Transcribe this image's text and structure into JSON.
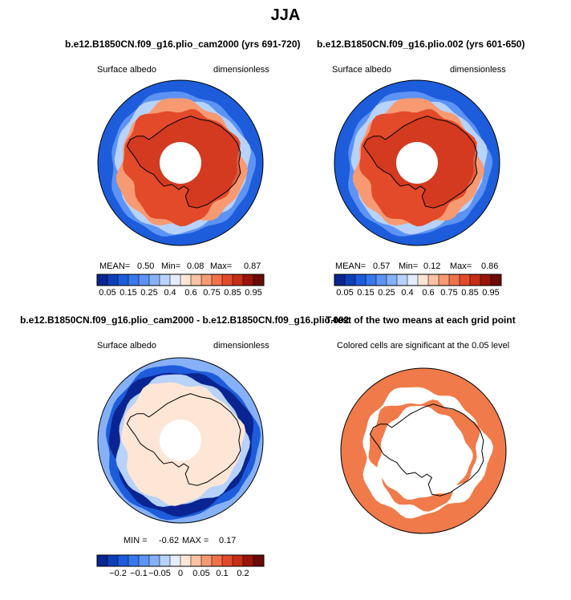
{
  "page_title": "JJA",
  "panels": [
    {
      "title": "b.e12.B1850CN.f09_g16.plio_cam2000 (yrs 691-720)",
      "left_label": "Surface albedo",
      "right_label": "dimensionless",
      "stats": {
        "mean_label": "MEAN=",
        "mean": "0.50",
        "min_label": "Min=",
        "min": "0.08",
        "max_label": "Max=",
        "max": "0.87"
      }
    },
    {
      "title": "b.e12.B1850CN.f09_g16.plio.002 (yrs 601-650)",
      "left_label": "Surface albedo",
      "right_label": "dimensionless",
      "stats": {
        "mean_label": "MEAN=",
        "mean": "0.57",
        "min_label": "Min=",
        "min": "0.12",
        "max_label": "Max=",
        "max": "0.86"
      }
    },
    {
      "title": "b.e12.B1850CN.f09_g16.plio_cam2000 - b.e12.B1850CN.f09_g16.plio.002",
      "left_label": "Surface albedo",
      "right_label": "dimensionless",
      "stats": {
        "min_label": "MIN =",
        "min": "-0.62",
        "max_label": "MAX =",
        "max": "0.17"
      }
    },
    {
      "title": "T-test of the two means at each grid point",
      "left_label": "Colored cells are significant at the 0.05 level"
    }
  ],
  "chart_data": [
    {
      "type": "heatmap",
      "projection": "south-polar-stereographic",
      "variable": "Surface albedo",
      "units": "dimensionless",
      "colorbar": {
        "levels": [
          0.05,
          0.1,
          0.15,
          0.2,
          0.25,
          0.3,
          0.4,
          0.5,
          0.6,
          0.7,
          0.75,
          0.8,
          0.85,
          0.9,
          0.95
        ],
        "tick_labels": [
          "0.05",
          "0.15",
          "0.25",
          "0.4",
          "0.6",
          "0.75",
          "0.85",
          "0.95"
        ],
        "colors": [
          "#0a2591",
          "#0e3fbb",
          "#1d5ddc",
          "#3877ec",
          "#5c93f4",
          "#86b1f8",
          "#b7d2fb",
          "#e3edfd",
          "#fde6d6",
          "#fbc3a3",
          "#f79a72",
          "#f0714a",
          "#e34a2a",
          "#c62d15",
          "#9a1409",
          "#6b0b06"
        ]
      },
      "mean": 0.5,
      "min": 0.08,
      "max": 0.87
    },
    {
      "type": "heatmap",
      "projection": "south-polar-stereographic",
      "variable": "Surface albedo",
      "units": "dimensionless",
      "colorbar": {
        "levels": [
          0.05,
          0.1,
          0.15,
          0.2,
          0.25,
          0.3,
          0.4,
          0.5,
          0.6,
          0.7,
          0.75,
          0.8,
          0.85,
          0.9,
          0.95
        ],
        "tick_labels": [
          "0.05",
          "0.15",
          "0.25",
          "0.4",
          "0.6",
          "0.75",
          "0.85",
          "0.95"
        ],
        "colors": [
          "#0a2591",
          "#0e3fbb",
          "#1d5ddc",
          "#3877ec",
          "#5c93f4",
          "#86b1f8",
          "#b7d2fb",
          "#e3edfd",
          "#fde6d6",
          "#fbc3a3",
          "#f79a72",
          "#f0714a",
          "#e34a2a",
          "#c62d15",
          "#9a1409",
          "#6b0b06"
        ]
      },
      "mean": 0.57,
      "min": 0.12,
      "max": 0.86
    },
    {
      "type": "heatmap",
      "projection": "south-polar-stereographic",
      "variable": "Surface albedo",
      "units": "dimensionless",
      "colorbar": {
        "levels": [
          -0.25,
          -0.2,
          -0.15,
          -0.1,
          -0.075,
          -0.05,
          -0.025,
          0,
          0.025,
          0.05,
          0.075,
          0.1,
          0.15,
          0.2,
          0.25
        ],
        "tick_labels": [
          "-0.2",
          "-0.1",
          "-0.05",
          "0",
          "0.05",
          "0.1",
          "0.2"
        ],
        "colors": [
          "#0a2591",
          "#0e3fbb",
          "#1d5ddc",
          "#3877ec",
          "#5c93f4",
          "#86b1f8",
          "#b7d2fb",
          "#e3edfd",
          "#fde6d6",
          "#fbc3a3",
          "#f79a72",
          "#f0714a",
          "#e34a2a",
          "#c62d15",
          "#9a1409",
          "#6b0b06"
        ]
      },
      "min": -0.62,
      "max": 0.17
    },
    {
      "type": "heatmap",
      "projection": "south-polar-stereographic",
      "description_text": "Colored cells are significant at the 0.05 level",
      "significant_color": "#f07a4a"
    }
  ]
}
